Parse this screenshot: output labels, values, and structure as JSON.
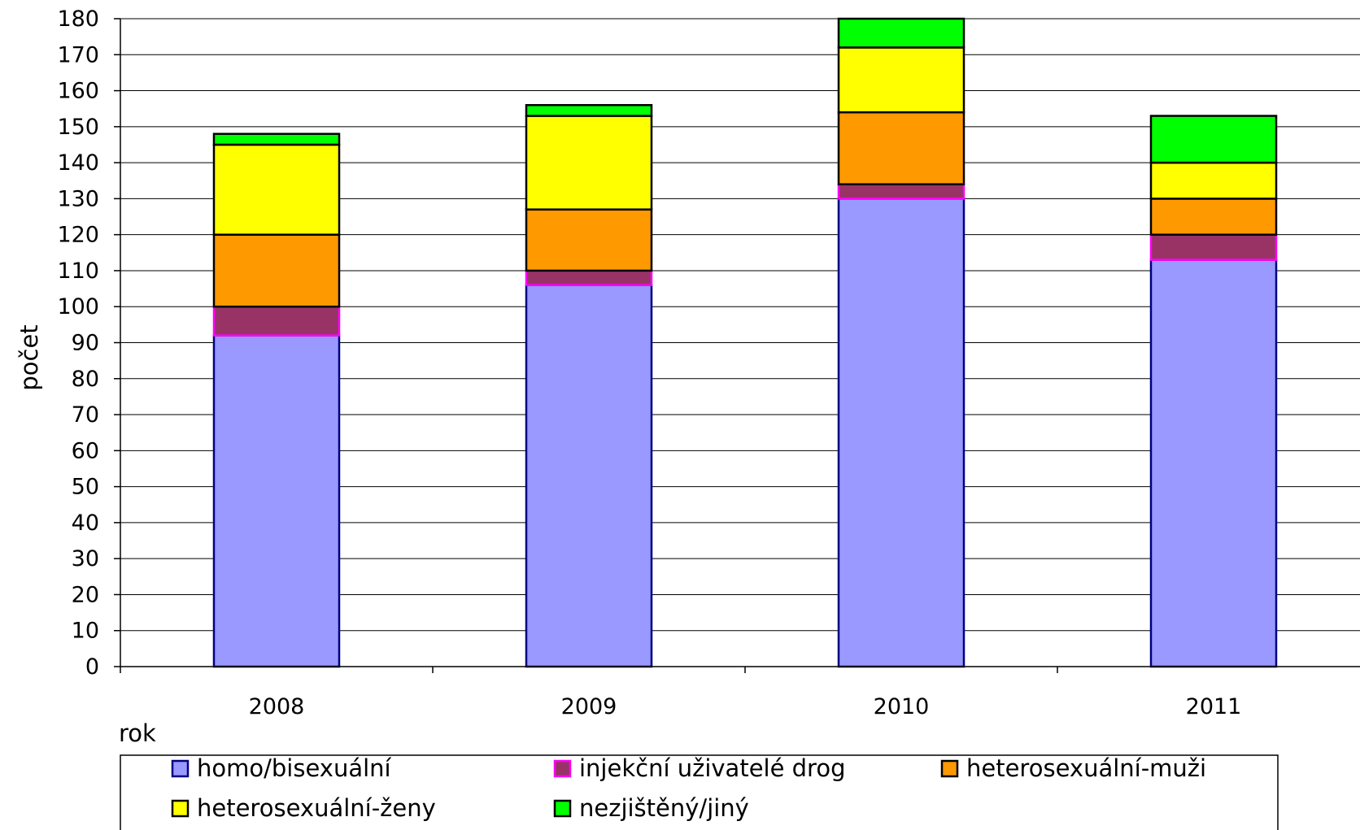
{
  "chart_data": {
    "type": "bar",
    "stacked": true,
    "title": "",
    "xlabel": "rok",
    "ylabel": "počet",
    "ylim": [
      0,
      180
    ],
    "ytick_step": 10,
    "grid": true,
    "legend_position": "bottom",
    "categories": [
      "2008",
      "2009",
      "2010",
      "2011"
    ],
    "series": [
      {
        "name": "homo/bisexuální",
        "values": [
          92,
          106,
          130,
          113
        ],
        "color": "#9999ff",
        "edge": "#000080"
      },
      {
        "name": "injekční uživatelé drog",
        "values": [
          8,
          4,
          4,
          7
        ],
        "color": "#993366",
        "edge": "#ff00ff"
      },
      {
        "name": "heterosexuální-muži",
        "values": [
          20,
          17,
          20,
          10
        ],
        "color": "#ff9900",
        "edge": "#000000"
      },
      {
        "name": "heterosexuální-ženy",
        "values": [
          25,
          26,
          18,
          10
        ],
        "color": "#ffff00",
        "edge": "#000000"
      },
      {
        "name": "nezjištěný/jiný",
        "values": [
          3,
          3,
          8,
          13
        ],
        "color": "#00ff00",
        "edge": "#000000"
      }
    ]
  }
}
